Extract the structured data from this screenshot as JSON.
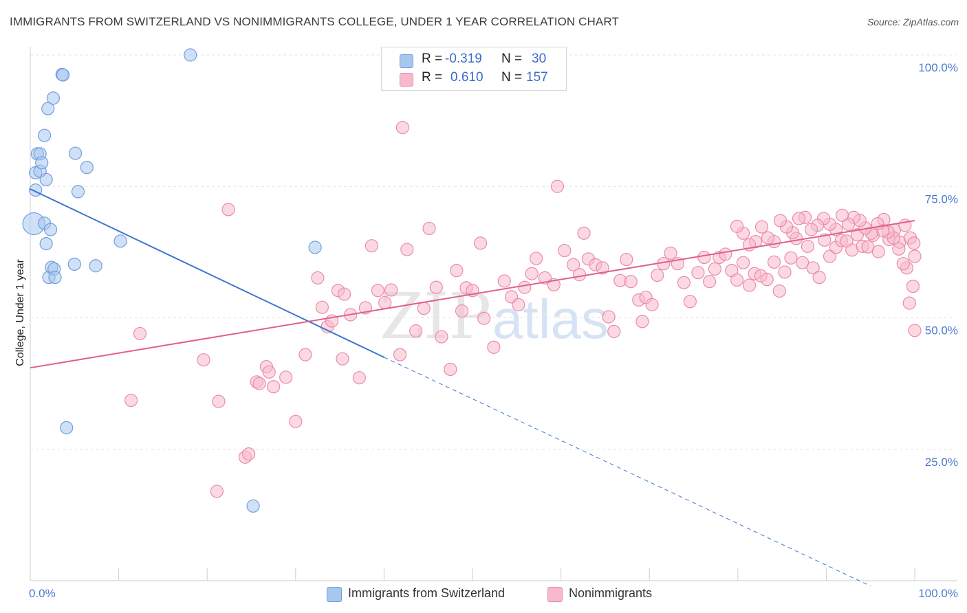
{
  "title": "IMMIGRANTS FROM SWITZERLAND VS NONIMMIGRANTS COLLEGE, UNDER 1 YEAR CORRELATION CHART",
  "source": "Source: ZipAtlas.com",
  "watermark": {
    "part1": "ZIP",
    "part2": "atlas"
  },
  "legend": {
    "rows": [
      {
        "r_label": "R =",
        "r_value": "-0.319",
        "n_label": "N =",
        "n_value": "30",
        "color": "#a9c6ef",
        "stroke": "#6f9ee0"
      },
      {
        "r_label": "R =",
        "r_value": "0.610",
        "n_label": "N =",
        "n_value": "157",
        "color": "#f7b9cc",
        "stroke": "#ec8aa9"
      }
    ]
  },
  "bottom_legend": [
    {
      "label": "Immigrants from Switzerland",
      "color": "#a9c6ef",
      "stroke": "#6f9ee0"
    },
    {
      "label": "Nonimmigrants",
      "color": "#f7b9cc",
      "stroke": "#ec8aa9"
    }
  ],
  "chart_data": {
    "type": "scatter",
    "ylabel": "College, Under 1 year",
    "xlabel": "",
    "xlim": [
      0,
      100
    ],
    "ylim": [
      0,
      100
    ],
    "x_tick_labels": [
      "0.0%",
      "100.0%"
    ],
    "y_tick_labels": [
      {
        "value": 100,
        "label": "100.0%"
      },
      {
        "value": 75,
        "label": "75.0%"
      },
      {
        "value": 50,
        "label": "50.0%"
      },
      {
        "value": 25,
        "label": "25.0%"
      }
    ],
    "grid": true,
    "series": [
      {
        "name": "Immigrants from Switzerland",
        "color": "#a9c6ef",
        "stroke": "#6f9ee0",
        "line_color": "#3a75d0",
        "trend": {
          "x0": 0,
          "y0": 74.5,
          "x1": 40,
          "y1": 42.5,
          "x_dash_end": 95,
          "y_dash_end": -1
        },
        "points": [
          [
            0.4,
            67.9
          ],
          [
            0.6,
            77.6
          ],
          [
            0.6,
            74.3
          ],
          [
            0.8,
            81.2
          ],
          [
            1.1,
            77.9
          ],
          [
            1.1,
            81.2
          ],
          [
            1.3,
            79.5
          ],
          [
            1.6,
            68.0
          ],
          [
            1.6,
            84.7
          ],
          [
            1.8,
            76.3
          ],
          [
            1.8,
            64.1
          ],
          [
            2.0,
            89.8
          ],
          [
            2.1,
            57.7
          ],
          [
            2.3,
            66.8
          ],
          [
            2.4,
            59.6
          ],
          [
            2.6,
            91.8
          ],
          [
            2.7,
            59.3
          ],
          [
            2.8,
            57.7
          ],
          [
            3.6,
            96.3
          ],
          [
            3.7,
            96.2
          ],
          [
            4.1,
            29.1
          ],
          [
            5.0,
            60.2
          ],
          [
            5.1,
            81.3
          ],
          [
            5.4,
            74.0
          ],
          [
            6.4,
            78.6
          ],
          [
            7.4,
            59.9
          ],
          [
            10.2,
            64.6
          ],
          [
            18.1,
            100.0
          ],
          [
            25.2,
            14.2
          ],
          [
            32.2,
            63.4
          ]
        ]
      },
      {
        "name": "Nonimmigrants",
        "color": "#f7b9cc",
        "stroke": "#ec8aa9",
        "line_color": "#e0608a",
        "trend": {
          "x0": 0,
          "y0": 40.5,
          "x1": 100,
          "y1": 68.5
        },
        "points": [
          [
            11.4,
            34.3
          ],
          [
            12.4,
            47.0
          ],
          [
            19.6,
            42.0
          ],
          [
            21.1,
            17.0
          ],
          [
            21.3,
            34.1
          ],
          [
            22.4,
            70.6
          ],
          [
            24.3,
            23.5
          ],
          [
            24.7,
            24.1
          ],
          [
            25.6,
            37.8
          ],
          [
            25.9,
            37.5
          ],
          [
            26.7,
            40.7
          ],
          [
            27.0,
            39.7
          ],
          [
            27.5,
            36.9
          ],
          [
            28.9,
            38.7
          ],
          [
            30.0,
            30.3
          ],
          [
            31.1,
            43.0
          ],
          [
            32.5,
            57.6
          ],
          [
            33.0,
            52.0
          ],
          [
            33.6,
            48.3
          ],
          [
            34.1,
            49.4
          ],
          [
            34.8,
            55.2
          ],
          [
            35.3,
            42.2
          ],
          [
            35.5,
            54.5
          ],
          [
            36.2,
            50.6
          ],
          [
            37.2,
            38.6
          ],
          [
            37.9,
            51.9
          ],
          [
            38.6,
            63.7
          ],
          [
            39.3,
            55.2
          ],
          [
            40.1,
            52.9
          ],
          [
            40.8,
            55.3
          ],
          [
            41.8,
            43.0
          ],
          [
            42.1,
            86.2
          ],
          [
            42.6,
            63.0
          ],
          [
            43.6,
            47.5
          ],
          [
            44.5,
            51.8
          ],
          [
            45.1,
            67.0
          ],
          [
            45.9,
            55.8
          ],
          [
            46.5,
            46.4
          ],
          [
            47.5,
            40.2
          ],
          [
            48.2,
            59.0
          ],
          [
            48.8,
            51.3
          ],
          [
            49.3,
            55.7
          ],
          [
            50.0,
            55.2
          ],
          [
            50.9,
            64.2
          ],
          [
            51.3,
            49.9
          ],
          [
            52.4,
            44.4
          ],
          [
            53.6,
            57.0
          ],
          [
            54.4,
            54.0
          ],
          [
            55.2,
            52.5
          ],
          [
            55.9,
            55.8
          ],
          [
            56.7,
            58.4
          ],
          [
            57.2,
            61.3
          ],
          [
            58.2,
            57.6
          ],
          [
            59.2,
            56.3
          ],
          [
            59.6,
            75.0
          ],
          [
            60.4,
            62.8
          ],
          [
            61.4,
            60.1
          ],
          [
            62.1,
            58.2
          ],
          [
            62.6,
            66.1
          ],
          [
            63.1,
            61.2
          ],
          [
            63.9,
            60.1
          ],
          [
            64.7,
            59.5
          ],
          [
            65.4,
            50.2
          ],
          [
            66.0,
            47.4
          ],
          [
            66.7,
            57.1
          ],
          [
            67.4,
            61.1
          ],
          [
            67.9,
            56.9
          ],
          [
            68.8,
            53.4
          ],
          [
            69.2,
            49.3
          ],
          [
            69.6,
            53.9
          ],
          [
            70.3,
            52.5
          ],
          [
            70.9,
            58.1
          ],
          [
            71.6,
            60.3
          ],
          [
            72.4,
            62.3
          ],
          [
            73.2,
            60.3
          ],
          [
            73.9,
            56.7
          ],
          [
            74.6,
            53.1
          ],
          [
            75.5,
            58.6
          ],
          [
            76.2,
            61.5
          ],
          [
            76.8,
            56.9
          ],
          [
            77.4,
            59.3
          ],
          [
            77.9,
            61.5
          ],
          [
            78.6,
            62.1
          ],
          [
            79.3,
            59.0
          ],
          [
            79.9,
            57.2
          ],
          [
            80.6,
            60.5
          ],
          [
            81.3,
            56.2
          ],
          [
            81.9,
            58.4
          ],
          [
            82.6,
            58.0
          ],
          [
            83.3,
            57.3
          ],
          [
            84.1,
            60.6
          ],
          [
            84.7,
            55.1
          ],
          [
            85.3,
            58.7
          ],
          [
            86.0,
            61.4
          ],
          [
            86.6,
            65.1
          ],
          [
            87.3,
            60.5
          ],
          [
            87.9,
            63.6
          ],
          [
            88.5,
            59.5
          ],
          [
            89.2,
            57.7
          ],
          [
            89.8,
            64.8
          ],
          [
            90.4,
            61.7
          ],
          [
            91.1,
            63.4
          ],
          [
            91.7,
            64.7
          ],
          [
            92.3,
            64.6
          ],
          [
            92.9,
            62.9
          ],
          [
            93.5,
            65.8
          ],
          [
            94.1,
            63.6
          ],
          [
            94.7,
            63.5
          ],
          [
            95.3,
            65.7
          ],
          [
            95.9,
            62.6
          ],
          [
            96.5,
            68.7
          ],
          [
            97.1,
            64.9
          ],
          [
            97.7,
            66.7
          ],
          [
            98.3,
            64.4
          ],
          [
            98.9,
            67.6
          ],
          [
            99.5,
            65.2
          ],
          [
            99.9,
            64.2
          ],
          [
            100.0,
            61.7
          ],
          [
            99.8,
            56.0
          ],
          [
            99.4,
            52.8
          ],
          [
            99.1,
            59.5
          ],
          [
            98.7,
            60.3
          ],
          [
            98.2,
            63.1
          ],
          [
            97.6,
            65.2
          ],
          [
            97.0,
            66.3
          ],
          [
            96.4,
            66.6
          ],
          [
            95.8,
            67.9
          ],
          [
            95.1,
            66.1
          ],
          [
            94.4,
            67.1
          ],
          [
            93.8,
            68.5
          ],
          [
            93.1,
            69.1
          ],
          [
            92.5,
            67.8
          ],
          [
            91.8,
            69.5
          ],
          [
            91.1,
            66.8
          ],
          [
            90.4,
            67.8
          ],
          [
            89.7,
            68.9
          ],
          [
            89.0,
            67.6
          ],
          [
            88.3,
            66.8
          ],
          [
            87.6,
            69.1
          ],
          [
            86.9,
            68.9
          ],
          [
            86.2,
            66.2
          ],
          [
            85.5,
            67.3
          ],
          [
            84.8,
            68.5
          ],
          [
            84.1,
            64.5
          ],
          [
            83.4,
            65.2
          ],
          [
            82.7,
            67.3
          ],
          [
            82.0,
            64.5
          ],
          [
            81.3,
            63.9
          ],
          [
            80.6,
            66.1
          ],
          [
            79.9,
            67.4
          ],
          [
            100.0,
            47.6
          ]
        ]
      }
    ]
  }
}
